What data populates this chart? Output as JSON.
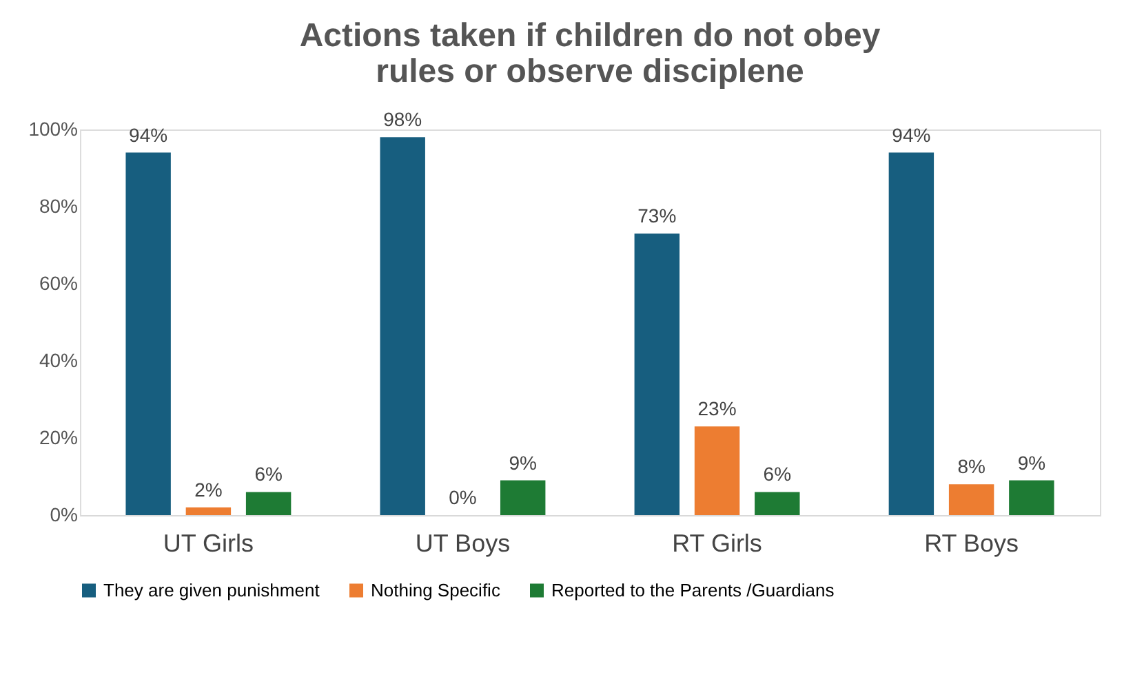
{
  "chart_data": {
    "type": "bar",
    "title": "Actions taken if children do not obey rules or observe disciplene",
    "categories": [
      "UT Girls",
      "UT Boys",
      "RT Girls",
      "RT Boys"
    ],
    "series": [
      {
        "name": "They are given punishment",
        "color": "#175e7f",
        "values": [
          94,
          98,
          73,
          94
        ],
        "value_labels": [
          "94%",
          "98%",
          "73%",
          "94%"
        ]
      },
      {
        "name": "Nothing Specific",
        "color": "#ed7d31",
        "values": [
          2,
          0,
          23,
          8
        ],
        "value_labels": [
          "2%",
          "0%",
          "23%",
          "8%"
        ]
      },
      {
        "name": "Reported to the Parents /Guardians",
        "color": "#1e7b34",
        "values": [
          6,
          9,
          6,
          9
        ],
        "value_labels": [
          "6%",
          "9%",
          "6%",
          "9%"
        ]
      }
    ],
    "ylim": [
      0,
      100
    ],
    "yticks": [
      {
        "value": 0,
        "label": "0%"
      },
      {
        "value": 20,
        "label": "20%"
      },
      {
        "value": 40,
        "label": "40%"
      },
      {
        "value": 60,
        "label": "60%"
      },
      {
        "value": 80,
        "label": "80%"
      },
      {
        "value": 100,
        "label": "100%"
      }
    ],
    "grid": false,
    "legend": "bottom"
  }
}
